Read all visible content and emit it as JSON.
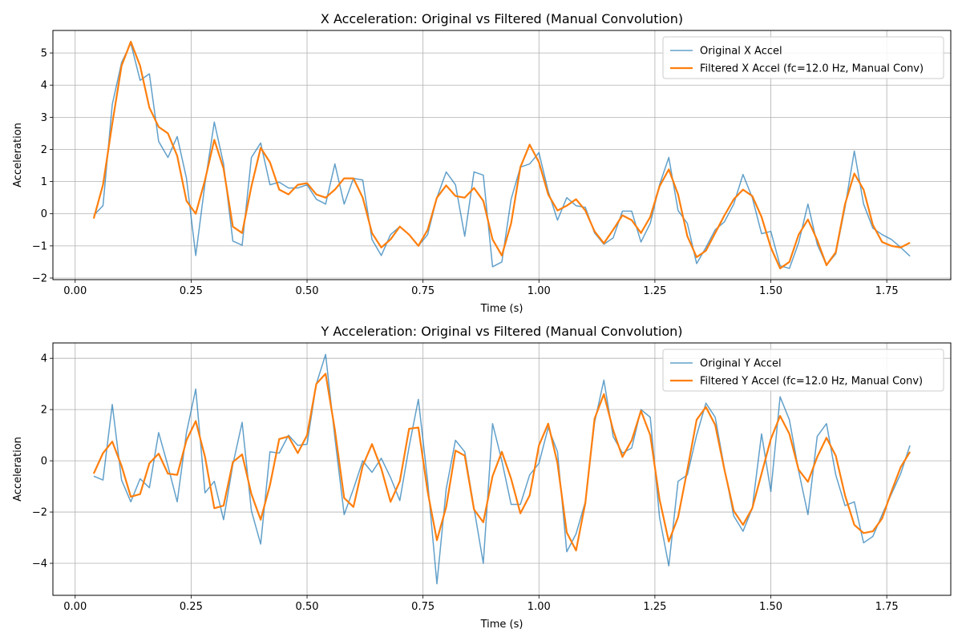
{
  "chart_data": [
    {
      "type": "line",
      "title": "X Acceleration: Original vs Filtered (Manual Convolution)",
      "xlabel": "Time (s)",
      "ylabel": "Acceleration",
      "xlim": [
        -0.048,
        1.888
      ],
      "ylim": [
        -2.05,
        5.7
      ],
      "xticks": [
        0.0,
        0.25,
        0.5,
        0.75,
        1.0,
        1.25,
        1.5,
        1.75
      ],
      "xtick_labels": [
        "0.00",
        "0.25",
        "0.50",
        "0.75",
        "1.00",
        "1.25",
        "1.50",
        "1.75"
      ],
      "yticks": [
        -2,
        -1,
        0,
        1,
        2,
        3,
        4,
        5
      ],
      "ytick_labels": [
        "−2",
        "−1",
        "0",
        "1",
        "2",
        "3",
        "4",
        "5"
      ],
      "grid": true,
      "legend_position": "top-right",
      "x": [
        0.04,
        0.06,
        0.08,
        0.1,
        0.12,
        0.14,
        0.16,
        0.18,
        0.2,
        0.22,
        0.24,
        0.26,
        0.28,
        0.3,
        0.32,
        0.34,
        0.36,
        0.38,
        0.4,
        0.42,
        0.44,
        0.46,
        0.48,
        0.5,
        0.52,
        0.54,
        0.56,
        0.58,
        0.6,
        0.62,
        0.64,
        0.66,
        0.68,
        0.7,
        0.72,
        0.74,
        0.76,
        0.78,
        0.8,
        0.82,
        0.84,
        0.86,
        0.88,
        0.9,
        0.92,
        0.94,
        0.96,
        0.98,
        1.0,
        1.02,
        1.04,
        1.06,
        1.08,
        1.1,
        1.12,
        1.14,
        1.16,
        1.18,
        1.2,
        1.22,
        1.24,
        1.26,
        1.28,
        1.3,
        1.32,
        1.34,
        1.36,
        1.38,
        1.4,
        1.42,
        1.44,
        1.46,
        1.48,
        1.5,
        1.52,
        1.54,
        1.56,
        1.58,
        1.6,
        1.62,
        1.64,
        1.66,
        1.68,
        1.7,
        1.72,
        1.74,
        1.76,
        1.78,
        1.8
      ],
      "series": [
        {
          "name": "Original X Accel",
          "color": "#1f77b4",
          "values": [
            -0.05,
            0.25,
            3.4,
            4.7,
            5.3,
            4.15,
            4.35,
            2.25,
            1.75,
            2.4,
            1.1,
            -1.3,
            0.95,
            2.85,
            1.55,
            -0.85,
            -0.98,
            1.75,
            2.2,
            0.9,
            0.98,
            0.8,
            0.8,
            0.9,
            0.45,
            0.3,
            1.55,
            0.3,
            1.1,
            1.05,
            -0.8,
            -1.3,
            -0.65,
            -0.4,
            -0.65,
            -1.0,
            -0.65,
            0.5,
            1.3,
            0.9,
            -0.7,
            1.3,
            1.2,
            -1.65,
            -1.5,
            0.45,
            1.45,
            1.55,
            1.9,
            0.7,
            -0.2,
            0.5,
            0.25,
            0.2,
            -0.6,
            -0.95,
            -0.75,
            0.08,
            0.08,
            -0.88,
            -0.3,
            0.9,
            1.75,
            0.1,
            -0.3,
            -1.55,
            -1.05,
            -0.5,
            -0.25,
            0.3,
            1.22,
            0.5,
            -0.62,
            -0.55,
            -1.62,
            -1.7,
            -0.9,
            0.3,
            -0.95,
            -1.6,
            -1.25,
            0.2,
            1.95,
            0.3,
            -0.45,
            -0.65,
            -0.8,
            -1.05,
            -1.32
          ]
        },
        {
          "name": "Filtered X Accel (fc=12.0 Hz, Manual Conv)",
          "color": "#ff7f0e",
          "values": [
            -0.15,
            0.9,
            2.8,
            4.6,
            5.35,
            4.6,
            3.3,
            2.7,
            2.5,
            1.8,
            0.4,
            0.0,
            1.05,
            2.3,
            1.4,
            -0.4,
            -0.6,
            0.85,
            2.05,
            1.6,
            0.75,
            0.6,
            0.9,
            0.95,
            0.6,
            0.5,
            0.75,
            1.1,
            1.1,
            0.5,
            -0.6,
            -1.05,
            -0.8,
            -0.4,
            -0.65,
            -1.0,
            -0.5,
            0.5,
            0.88,
            0.55,
            0.5,
            0.8,
            0.4,
            -0.8,
            -1.3,
            -0.3,
            1.45,
            2.15,
            1.6,
            0.6,
            0.1,
            0.25,
            0.45,
            0.1,
            -0.55,
            -0.92,
            -0.5,
            -0.05,
            -0.2,
            -0.6,
            -0.1,
            0.85,
            1.38,
            0.6,
            -0.7,
            -1.35,
            -1.15,
            -0.6,
            -0.05,
            0.45,
            0.75,
            0.55,
            -0.1,
            -1.05,
            -1.7,
            -1.5,
            -0.65,
            -0.18,
            -0.82,
            -1.6,
            -1.2,
            0.3,
            1.25,
            0.75,
            -0.35,
            -0.88,
            -1.0,
            -1.05,
            -0.9
          ]
        }
      ]
    },
    {
      "type": "line",
      "title": "Y Acceleration: Original vs Filtered (Manual Convolution)",
      "xlabel": "Time (s)",
      "ylabel": "Acceleration",
      "xlim": [
        -0.048,
        1.888
      ],
      "ylim": [
        -5.25,
        4.6
      ],
      "xticks": [
        0.0,
        0.25,
        0.5,
        0.75,
        1.0,
        1.25,
        1.5,
        1.75
      ],
      "xtick_labels": [
        "0.00",
        "0.25",
        "0.50",
        "0.75",
        "1.00",
        "1.25",
        "1.50",
        "1.75"
      ],
      "yticks": [
        -4,
        -2,
        0,
        2,
        4
      ],
      "ytick_labels": [
        "−4",
        "−2",
        "0",
        "2",
        "4"
      ],
      "grid": true,
      "legend_position": "top-right",
      "x": [
        0.04,
        0.06,
        0.08,
        0.1,
        0.12,
        0.14,
        0.16,
        0.18,
        0.2,
        0.22,
        0.24,
        0.26,
        0.28,
        0.3,
        0.32,
        0.34,
        0.36,
        0.38,
        0.4,
        0.42,
        0.44,
        0.46,
        0.48,
        0.5,
        0.52,
        0.54,
        0.56,
        0.58,
        0.6,
        0.62,
        0.64,
        0.66,
        0.68,
        0.7,
        0.72,
        0.74,
        0.76,
        0.78,
        0.8,
        0.82,
        0.84,
        0.86,
        0.88,
        0.9,
        0.92,
        0.94,
        0.96,
        0.98,
        1.0,
        1.02,
        1.04,
        1.06,
        1.08,
        1.1,
        1.12,
        1.14,
        1.16,
        1.18,
        1.2,
        1.22,
        1.24,
        1.26,
        1.28,
        1.3,
        1.32,
        1.34,
        1.36,
        1.38,
        1.4,
        1.42,
        1.44,
        1.46,
        1.48,
        1.5,
        1.52,
        1.54,
        1.56,
        1.58,
        1.6,
        1.62,
        1.64,
        1.66,
        1.68,
        1.7,
        1.72,
        1.74,
        1.76,
        1.78,
        1.8
      ],
      "series": [
        {
          "name": "Original Y Accel",
          "color": "#1f77b4",
          "values": [
            -0.6,
            -0.75,
            2.2,
            -0.75,
            -1.6,
            -0.7,
            -1.05,
            1.1,
            -0.2,
            -1.6,
            1.1,
            2.8,
            -1.25,
            -0.8,
            -2.3,
            -0.15,
            1.5,
            -1.95,
            -3.25,
            0.35,
            0.3,
            1.0,
            0.6,
            0.65,
            3.0,
            4.15,
            0.9,
            -2.1,
            -1.1,
            0.0,
            -0.45,
            0.1,
            -0.65,
            -1.55,
            0.55,
            2.4,
            -0.8,
            -4.8,
            -1.1,
            0.8,
            0.35,
            -1.85,
            -4.0,
            1.45,
            0.0,
            -1.7,
            -1.7,
            -0.55,
            -0.1,
            1.3,
            0.35,
            -3.55,
            -2.85,
            -1.6,
            1.5,
            3.15,
            0.95,
            0.3,
            0.5,
            2.0,
            1.7,
            -2.2,
            -4.1,
            -0.8,
            -0.55,
            1.0,
            2.25,
            1.7,
            -0.3,
            -2.15,
            -2.75,
            -1.85,
            1.05,
            -1.2,
            2.5,
            1.6,
            -0.4,
            -2.1,
            0.95,
            1.45,
            -0.55,
            -1.75,
            -1.6,
            -3.2,
            -2.95,
            -2.1,
            -1.3,
            -0.5,
            0.6
          ]
        },
        {
          "name": "Filtered Y Accel (fc=12.0 Hz, Manual Conv)",
          "color": "#ff7f0e",
          "values": [
            -0.5,
            0.3,
            0.75,
            -0.2,
            -1.4,
            -1.3,
            -0.1,
            0.28,
            -0.5,
            -0.55,
            0.8,
            1.55,
            0.15,
            -1.85,
            -1.75,
            -0.05,
            0.25,
            -1.3,
            -2.3,
            -0.95,
            0.85,
            0.95,
            0.3,
            1.0,
            3.0,
            3.4,
            1.2,
            -1.45,
            -1.8,
            -0.2,
            0.65,
            -0.3,
            -1.6,
            -0.8,
            1.25,
            1.3,
            -1.2,
            -3.1,
            -1.8,
            0.4,
            0.2,
            -1.9,
            -2.4,
            -0.6,
            0.35,
            -0.7,
            -2.05,
            -1.35,
            0.6,
            1.45,
            -0.1,
            -2.8,
            -3.5,
            -1.65,
            1.65,
            2.6,
            1.2,
            0.15,
            0.8,
            1.95,
            1.0,
            -1.5,
            -3.15,
            -2.2,
            -0.35,
            1.6,
            2.1,
            1.4,
            -0.35,
            -1.95,
            -2.5,
            -1.85,
            -0.5,
            0.85,
            1.75,
            1.05,
            -0.35,
            -0.82,
            0.15,
            0.9,
            0.2,
            -1.35,
            -2.5,
            -2.82,
            -2.75,
            -2.25,
            -1.2,
            -0.25,
            0.35
          ]
        }
      ]
    }
  ]
}
